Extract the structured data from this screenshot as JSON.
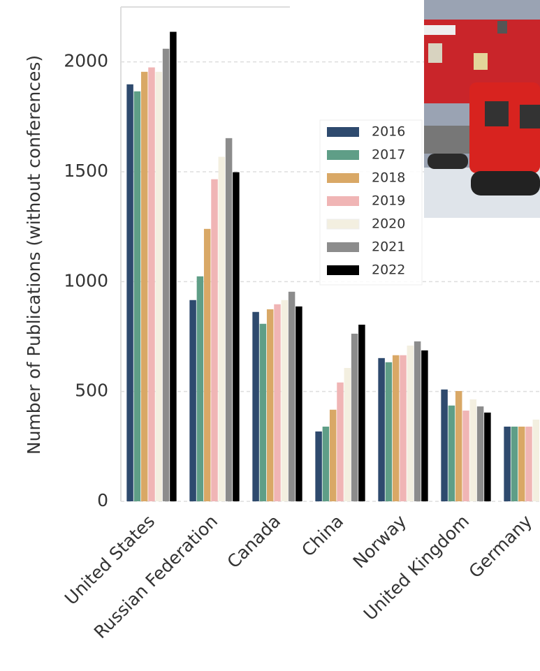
{
  "chart_data": {
    "type": "bar",
    "y_label": "Number of Publications (without conferences)",
    "categories": [
      "United States",
      "Russian Federation",
      "Canada",
      "China",
      "Norway",
      "United Kingdom",
      "Germany"
    ],
    "series": [
      {
        "name": "2016",
        "color": "#2e4a6e",
        "values": [
          1898,
          916,
          862,
          318,
          652,
          509,
          340
        ]
      },
      {
        "name": "2017",
        "color": "#5f9e87",
        "values": [
          1866,
          1024,
          808,
          340,
          633,
          436,
          340
        ]
      },
      {
        "name": "2018",
        "color": "#d9a866",
        "values": [
          1955,
          1240,
          874,
          417,
          665,
          502,
          340
        ]
      },
      {
        "name": "2019",
        "color": "#f0b5b5",
        "values": [
          1975,
          1466,
          897,
          541,
          665,
          413,
          340
        ]
      },
      {
        "name": "2020",
        "color": "#f3efe0",
        "values": [
          1955,
          1568,
          916,
          607,
          709,
          464,
          372
        ]
      },
      {
        "name": "2021",
        "color": "#8c8c8c",
        "values": [
          2060,
          1653,
          954,
          763,
          728,
          432,
          null
        ]
      },
      {
        "name": "2022",
        "color": "#000000",
        "values": [
          2137,
          1498,
          887,
          804,
          687,
          404,
          null
        ]
      }
    ],
    "ylim": [
      0,
      2250
    ],
    "yticks": [
      0,
      500,
      1000,
      1500,
      2000
    ],
    "grid": true
  }
}
